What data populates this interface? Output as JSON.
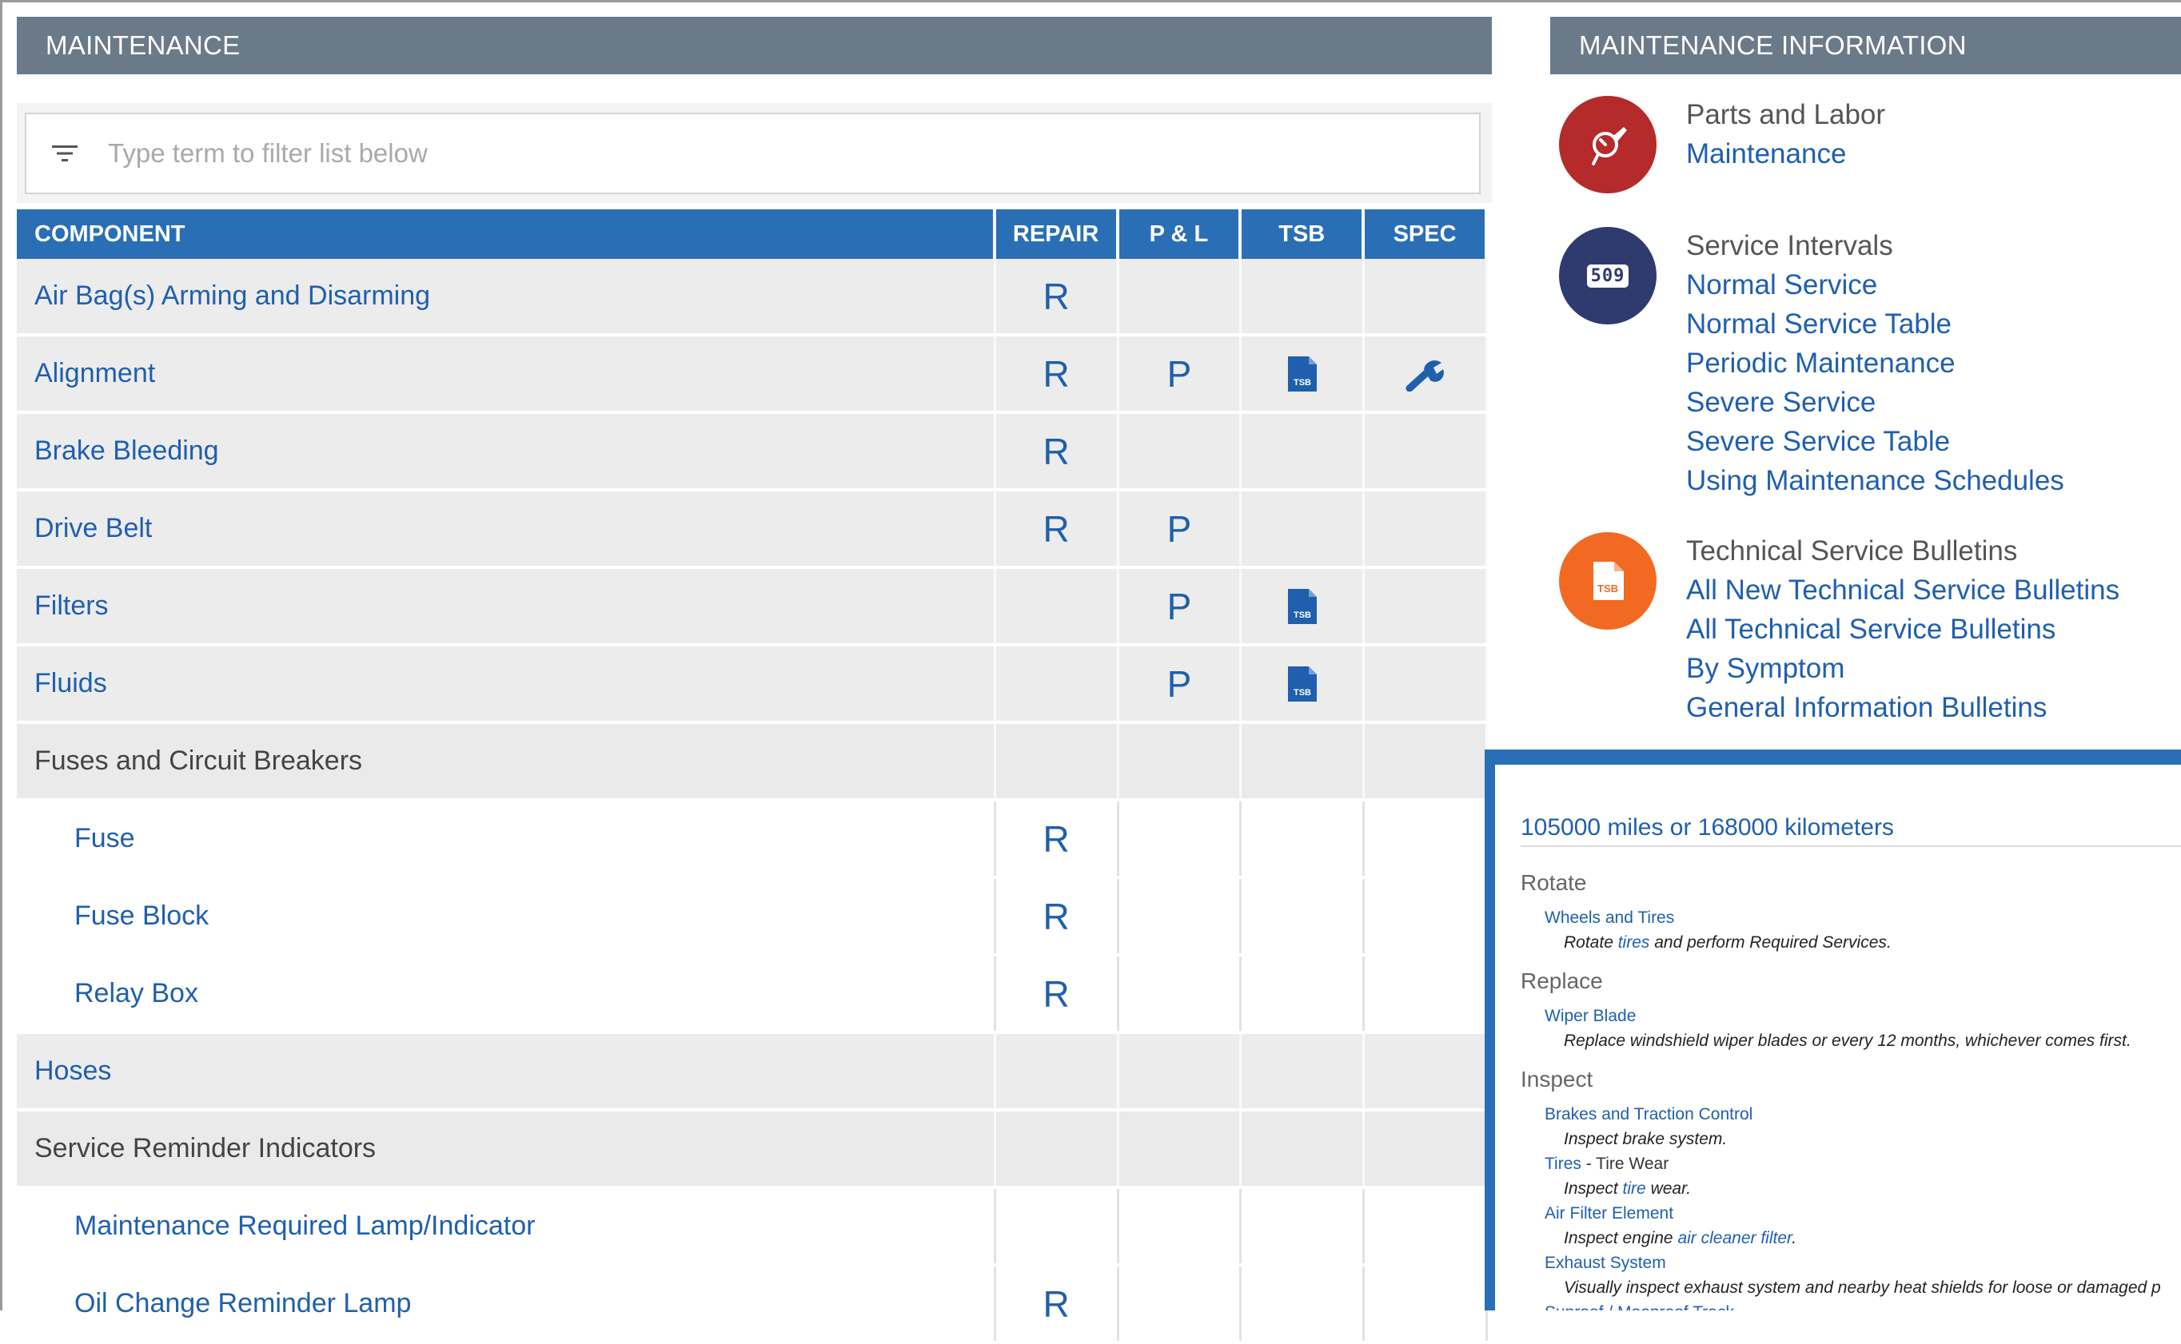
{
  "left_panel": {
    "header": "MAINTENANCE",
    "filter_placeholder": "Type term to filter list below",
    "columns": [
      "COMPONENT",
      "REPAIR",
      "P & L",
      "TSB",
      "SPEC"
    ],
    "rows": [
      {
        "component": "Air Bag(s) Arming and Disarming",
        "repair": "R",
        "pl": "",
        "tsb": false,
        "spec": false
      },
      {
        "component": "Alignment",
        "repair": "R",
        "pl": "P",
        "tsb": true,
        "spec": true
      },
      {
        "component": "Brake Bleeding",
        "repair": "R",
        "pl": "",
        "tsb": false,
        "spec": false
      },
      {
        "component": "Drive Belt",
        "repair": "R",
        "pl": "P",
        "tsb": false,
        "spec": false
      },
      {
        "component": "Filters",
        "repair": "",
        "pl": "P",
        "tsb": true,
        "spec": false
      },
      {
        "component": "Fluids",
        "repair": "",
        "pl": "P",
        "tsb": true,
        "spec": false
      },
      {
        "component": "Fuses and Circuit Breakers",
        "repair": "",
        "pl": "",
        "tsb": false,
        "spec": false,
        "group": true
      },
      {
        "component": "Fuse",
        "repair": "R",
        "pl": "",
        "tsb": false,
        "spec": false,
        "sub": true
      },
      {
        "component": "Fuse Block",
        "repair": "R",
        "pl": "",
        "tsb": false,
        "spec": false,
        "sub": true
      },
      {
        "component": "Relay Box",
        "repair": "R",
        "pl": "",
        "tsb": false,
        "spec": false,
        "sub": true
      },
      {
        "component": "Hoses",
        "repair": "",
        "pl": "",
        "tsb": false,
        "spec": false
      },
      {
        "component": "Service Reminder Indicators",
        "repair": "",
        "pl": "",
        "tsb": false,
        "spec": false,
        "group": true
      },
      {
        "component": "Maintenance Required Lamp/Indicator",
        "repair": "",
        "pl": "",
        "tsb": false,
        "spec": false,
        "sub": true
      },
      {
        "component": "Oil Change Reminder Lamp",
        "repair": "R",
        "pl": "",
        "tsb": false,
        "spec": false,
        "sub": true
      }
    ]
  },
  "right_panel": {
    "header": "MAINTENANCE INFORMATION",
    "groups": [
      {
        "title": "Parts and Labor",
        "icon": "parts-labor-icon",
        "color": "#b52a2a",
        "links": [
          "Maintenance"
        ]
      },
      {
        "title": "Service Intervals",
        "icon": "odometer-icon",
        "icon_text": "509",
        "color": "#2f3a6e",
        "links": [
          "Normal Service",
          "Normal Service Table",
          "Periodic Maintenance",
          "Severe Service",
          "Severe Service Table",
          "Using Maintenance Schedules"
        ]
      },
      {
        "title": "Technical Service Bulletins",
        "icon": "tsb-icon",
        "color": "#f26a21",
        "links": [
          "All New Technical Service Bulletins",
          "All Technical Service Bulletins",
          "By Symptom",
          "General Information Bulletins"
        ]
      }
    ]
  },
  "schedule": {
    "title": "105000 miles or 168000 kilometers",
    "rotate_label": "Rotate",
    "rotate_item": "Wheels and Tires",
    "rotate_desc_a": "Rotate ",
    "rotate_desc_link": "tires",
    "rotate_desc_b": " and perform Required Services.",
    "replace_label": "Replace",
    "replace_item": "Wiper Blade",
    "replace_desc": "Replace windshield wiper blades or every 12 months, whichever comes first.",
    "inspect_label": "Inspect",
    "inspect_item1": "Brakes and Traction Control",
    "inspect_desc1": "Inspect brake system.",
    "inspect_item2": "Tires",
    "inspect_item2_suffix": " - Tire Wear",
    "inspect_desc2_a": "Inspect ",
    "inspect_desc2_link": "tire",
    "inspect_desc2_b": " wear.",
    "inspect_item3": "Air Filter Element",
    "inspect_desc3_a": "Inspect engine ",
    "inspect_desc3_link": "air cleaner filter",
    "inspect_desc3_b": ".",
    "inspect_item4": "Exhaust System",
    "inspect_desc4": "Visually inspect exhaust system and nearby heat shields for loose or damaged p",
    "inspect_item5": "Sunroof / Moonroof Track"
  },
  "tsb_icon_label": "TSB"
}
